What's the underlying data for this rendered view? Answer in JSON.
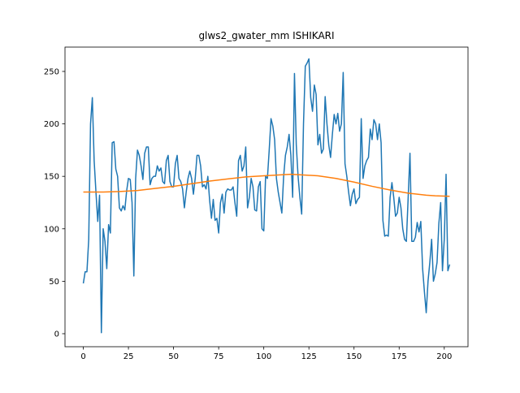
{
  "chart_data": {
    "type": "line",
    "title": "glws2_gwater_mm ISHIKARI",
    "x": [
      0,
      1,
      2,
      3,
      4,
      5,
      6,
      7,
      8,
      9,
      10,
      11,
      12,
      13,
      14,
      15,
      16,
      17,
      18,
      19,
      20,
      21,
      22,
      23,
      24,
      25,
      26,
      27,
      28,
      29,
      30,
      31,
      32,
      33,
      34,
      35,
      36,
      37,
      38,
      39,
      40,
      41,
      42,
      43,
      44,
      45,
      46,
      47,
      48,
      49,
      50,
      51,
      52,
      53,
      54,
      55,
      56,
      57,
      58,
      59,
      60,
      61,
      62,
      63,
      64,
      65,
      66,
      67,
      68,
      69,
      70,
      71,
      72,
      73,
      74,
      75,
      76,
      77,
      78,
      79,
      80,
      81,
      82,
      83,
      84,
      85,
      86,
      87,
      88,
      89,
      90,
      91,
      92,
      93,
      94,
      95,
      96,
      97,
      98,
      99,
      100,
      101,
      102,
      103,
      104,
      105,
      106,
      107,
      108,
      109,
      110,
      111,
      112,
      113,
      114,
      115,
      116,
      117,
      118,
      119,
      120,
      121,
      122,
      123,
      124,
      125,
      126,
      127,
      128,
      129,
      130,
      131,
      132,
      133,
      134,
      135,
      136,
      137,
      138,
      139,
      140,
      141,
      142,
      143,
      144,
      145,
      146,
      147,
      148,
      149,
      150,
      151,
      152,
      153,
      154,
      155,
      156,
      157,
      158,
      159,
      160,
      161,
      162,
      163,
      164,
      165,
      166,
      167,
      168,
      169,
      170,
      171,
      172,
      173,
      174,
      175,
      176,
      177,
      178,
      179,
      180,
      181,
      182,
      183,
      184,
      185,
      186,
      187,
      188,
      189,
      190,
      191,
      192,
      193,
      194,
      195,
      196,
      197,
      198,
      199,
      200,
      201,
      202,
      203
    ],
    "series": [
      {
        "color": "#1f77b4",
        "values": [
          48,
          59,
          59,
          90,
          200,
          225,
          165,
          135,
          107,
          132,
          1,
          100,
          88,
          62,
          104,
          96,
          182,
          183,
          157,
          150,
          120,
          117,
          122,
          118,
          136,
          148,
          147,
          125,
          55,
          148,
          175,
          170,
          160,
          147,
          172,
          178,
          178,
          142,
          148,
          150,
          150,
          160,
          155,
          158,
          145,
          143,
          165,
          170,
          145,
          140,
          140,
          162,
          170,
          148,
          145,
          138,
          120,
          135,
          148,
          155,
          148,
          133,
          148,
          170,
          170,
          160,
          140,
          142,
          138,
          150,
          127,
          110,
          128,
          108,
          110,
          96,
          125,
          133,
          115,
          135,
          138,
          137,
          137,
          140,
          125,
          112,
          165,
          170,
          155,
          160,
          178,
          120,
          130,
          148,
          140,
          118,
          117,
          140,
          145,
          100,
          98,
          150,
          148,
          175,
          205,
          198,
          185,
          148,
          135,
          125,
          115,
          150,
          170,
          178,
          190,
          170,
          130,
          248,
          180,
          150,
          130,
          114,
          200,
          255,
          258,
          262,
          225,
          212,
          237,
          228,
          180,
          190,
          172,
          176,
          226,
          200,
          180,
          168,
          190,
          209,
          200,
          210,
          193,
          200,
          249,
          162,
          150,
          135,
          122,
          133,
          138,
          124,
          128,
          130,
          205,
          148,
          160,
          165,
          168,
          195,
          185,
          204,
          200,
          185,
          200,
          182,
          108,
          93,
          94,
          93,
          130,
          144,
          130,
          112,
          115,
          130,
          120,
          100,
          90,
          88,
          130,
          172,
          88,
          88,
          92,
          106,
          97,
          107,
          62,
          40,
          20,
          50,
          68,
          90,
          50,
          57,
          68,
          105,
          125,
          60,
          90,
          152,
          60,
          66
        ]
      },
      {
        "color": "#ff7f0e",
        "x": [
          0,
          10,
          20,
          30,
          40,
          50,
          60,
          70,
          80,
          90,
          100,
          110,
          115,
          120,
          130,
          140,
          150,
          160,
          170,
          180,
          190,
          195,
          203
        ],
        "values": [
          135,
          135,
          135.5,
          136.5,
          138.5,
          140.5,
          143,
          145.5,
          147.5,
          149.5,
          150.5,
          151.5,
          152,
          151.5,
          150.5,
          148,
          144.5,
          140.5,
          137,
          134,
          132,
          131.5,
          131
        ]
      }
    ],
    "xlim": [
      -10.15,
      213.15
    ],
    "xticks": [
      0,
      25,
      50,
      75,
      100,
      125,
      150,
      175,
      200
    ],
    "ylim": [
      -12.4,
      273.2
    ],
    "yticks": [
      0,
      50,
      100,
      150,
      200,
      250
    ]
  }
}
